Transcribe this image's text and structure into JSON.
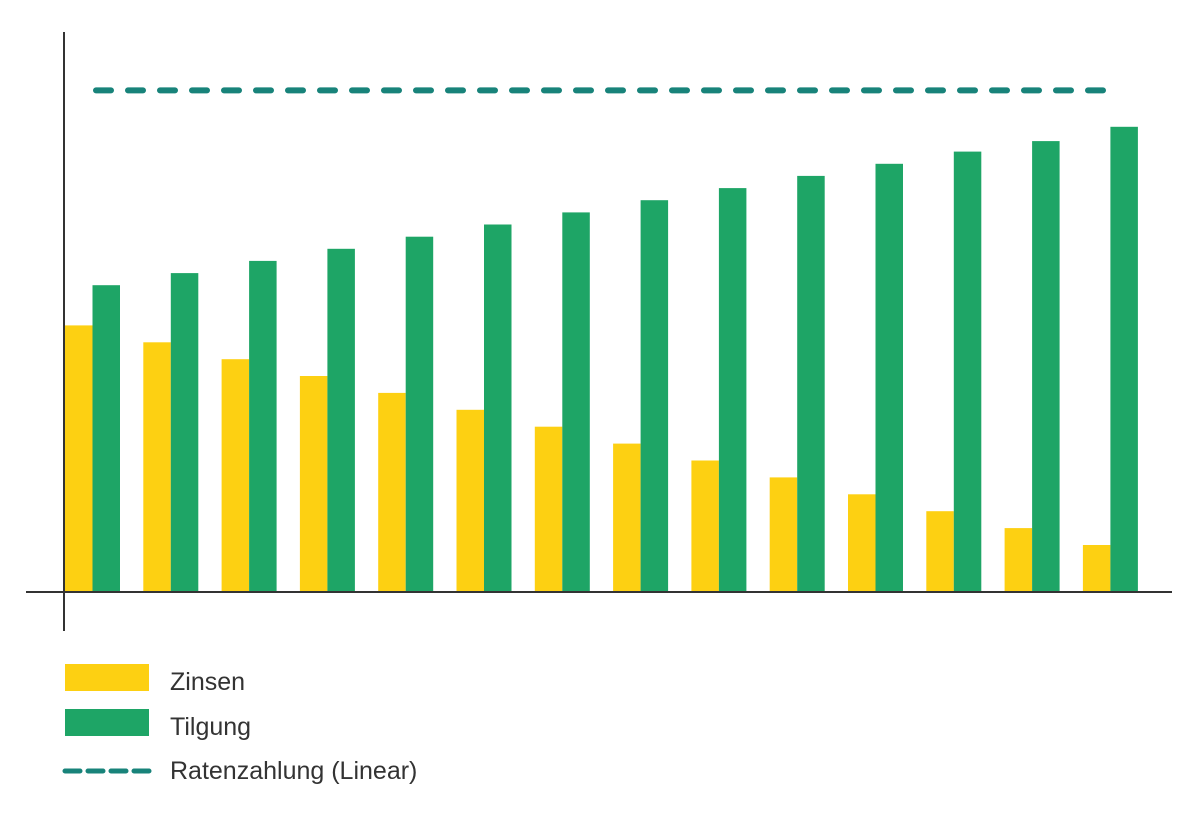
{
  "colors": {
    "zinsen": "#FDD012",
    "tilgung": "#1EA566",
    "rate": "#18837A",
    "axis": "#333333"
  },
  "chart_data": {
    "type": "bar",
    "title": "",
    "xlabel": "",
    "ylabel": "",
    "categories": [],
    "x": [
      1,
      2,
      3,
      4,
      5,
      6,
      7,
      8,
      9,
      10,
      11,
      12,
      13,
      14
    ],
    "ylim": [
      0,
      100
    ],
    "series": [
      {
        "name": "Zinsen",
        "kind": "bar",
        "color": "#FDD012",
        "values": [
          50.5,
          47.3,
          44.1,
          40.9,
          37.7,
          34.5,
          31.3,
          28.1,
          24.9,
          21.7,
          18.5,
          15.3,
          12.1,
          8.9
        ]
      },
      {
        "name": "Tilgung",
        "kind": "bar",
        "color": "#1EA566",
        "values": [
          58.1,
          60.4,
          62.7,
          65.0,
          67.3,
          69.6,
          71.9,
          74.2,
          76.5,
          78.8,
          81.1,
          83.4,
          85.4,
          88.1
        ]
      },
      {
        "name": "Ratenzahlung (Linear)",
        "kind": "line",
        "style": "dashed",
        "color": "#18837A",
        "values": [
          95,
          95,
          95,
          95,
          95,
          95,
          95,
          95,
          95,
          95,
          95,
          95,
          95,
          95
        ]
      }
    ],
    "grid": false,
    "legend": "bottom-left"
  },
  "legend": {
    "zinsen_label": "Zinsen",
    "tilgung_label": "Tilgung",
    "rate_label": "Ratenzahlung (Linear)"
  }
}
